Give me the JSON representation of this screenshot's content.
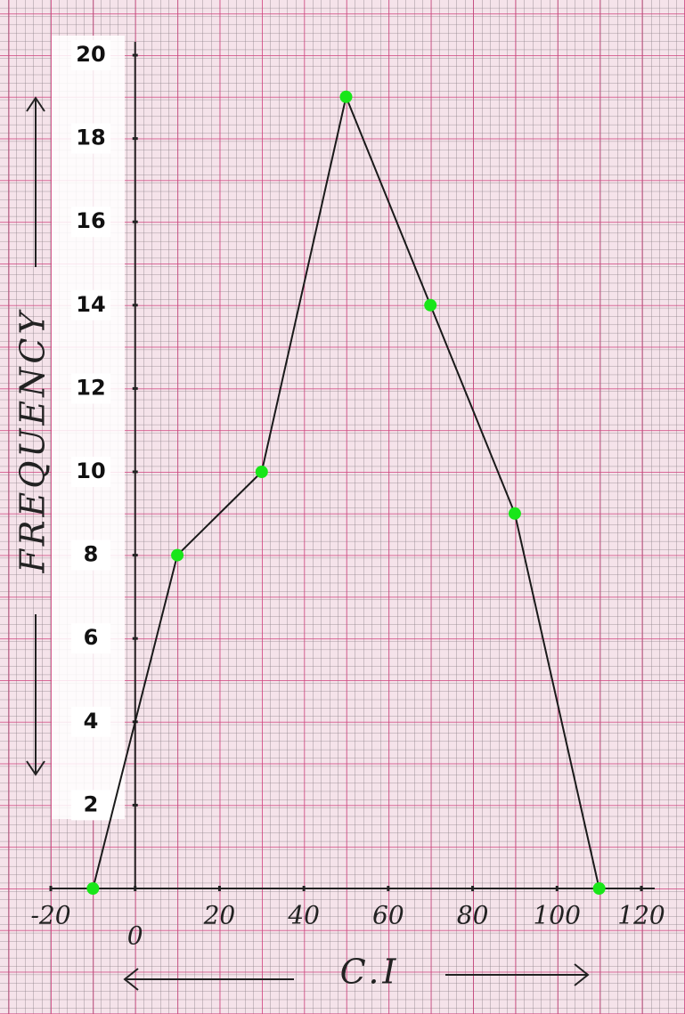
{
  "chart_data": {
    "type": "line",
    "x_label": "C.I",
    "y_label": "FREQUENCY",
    "x": [
      -10,
      10,
      30,
      50,
      70,
      90,
      110
    ],
    "values": [
      0,
      8,
      10,
      19,
      14,
      9,
      0
    ],
    "color": "#1a1a1a",
    "marker_color": "#19e619",
    "xlim": [
      -20,
      120
    ],
    "xticks": [
      -20,
      0,
      20,
      40,
      60,
      80,
      100,
      120
    ],
    "ylim": [
      0,
      20
    ],
    "yticks": [
      2,
      4,
      6,
      8,
      10,
      12,
      14,
      16,
      18,
      20
    ]
  }
}
